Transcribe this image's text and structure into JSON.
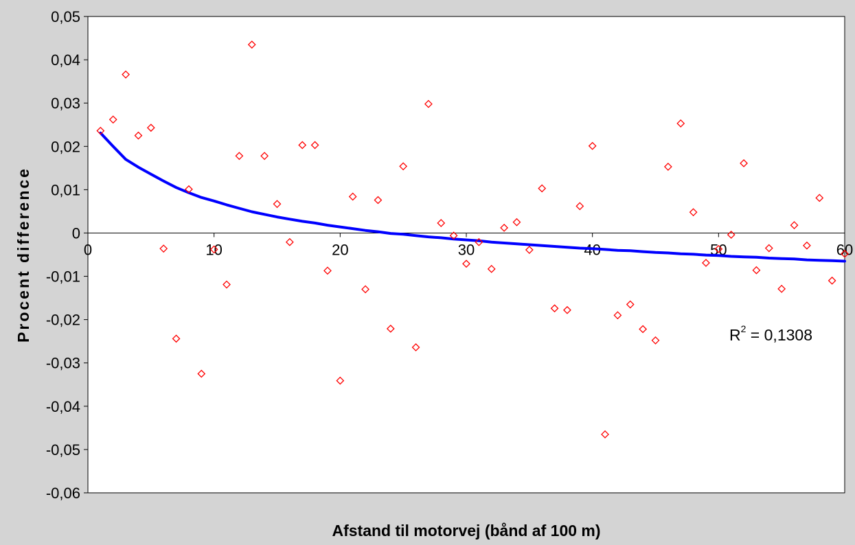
{
  "chart_data": {
    "type": "scatter",
    "title": "",
    "xlabel": "Afstand til motorvej (bånd af 100 m)",
    "ylabel": "Procent difference",
    "xlim": [
      0,
      60
    ],
    "ylim": [
      -0.06,
      0.05
    ],
    "x_ticks": [
      0,
      10,
      20,
      30,
      40,
      50,
      60
    ],
    "x_tick_labels": [
      "0",
      "10",
      "20",
      "30",
      "40",
      "50",
      "60"
    ],
    "y_ticks": [
      0.05,
      0.04,
      0.03,
      0.02,
      0.01,
      0,
      -0.01,
      -0.02,
      -0.03,
      -0.04,
      -0.05,
      -0.06
    ],
    "y_tick_labels": [
      "0,05",
      "0,04",
      "0,03",
      "0,02",
      "0,01",
      "0",
      "-0,01",
      "-0,02",
      "-0,03",
      "-0,04",
      "-0,05",
      "-0,06"
    ],
    "grid": false,
    "legend": "none",
    "series": [
      {
        "marker": "diamond-open",
        "color": "#ff0000",
        "x": [
          1,
          2,
          3,
          4,
          5,
          6,
          7,
          8,
          9,
          10,
          11,
          12,
          13,
          14,
          15,
          16,
          17,
          18,
          19,
          20,
          21,
          22,
          23,
          24,
          25,
          26,
          27,
          28,
          29,
          30,
          31,
          32,
          33,
          34,
          35,
          36,
          37,
          38,
          39,
          40,
          41,
          42,
          43,
          44,
          45,
          46,
          47,
          48,
          49,
          50,
          51,
          52,
          53,
          54,
          55,
          56,
          57,
          58,
          59,
          60
        ],
        "y": [
          0.0236,
          0.0262,
          0.0366,
          0.0225,
          0.0243,
          -0.0036,
          -0.0244,
          0.0101,
          -0.0325,
          -0.0038,
          -0.0119,
          0.0178,
          0.0435,
          0.0178,
          0.0067,
          -0.0021,
          0.0203,
          0.0203,
          -0.0087,
          -0.0341,
          0.0084,
          -0.013,
          0.0076,
          -0.0221,
          0.0154,
          -0.0264,
          0.0298,
          0.0023,
          -0.0006,
          -0.0071,
          -0.0021,
          -0.0083,
          0.0012,
          0.0025,
          -0.0039,
          0.0103,
          -0.0174,
          -0.0178,
          0.0062,
          0.0201,
          -0.0465,
          -0.019,
          -0.0165,
          -0.0222,
          -0.0248,
          0.0153,
          0.0253,
          0.0048,
          -0.0069,
          -0.0037,
          -0.0004,
          0.0161,
          -0.0086,
          -0.0035,
          -0.0129,
          0.0018,
          -0.0029,
          0.0081,
          -0.011,
          -0.0048
        ]
      },
      {
        "type": "line",
        "color": "#0000ff",
        "x": [
          1,
          2,
          3,
          4,
          5,
          6,
          7,
          8,
          9,
          10,
          11,
          12,
          13,
          14,
          15,
          16,
          17,
          18,
          19,
          20,
          21,
          22,
          23,
          24,
          25,
          26,
          27,
          28,
          29,
          30,
          31,
          32,
          33,
          34,
          35,
          36,
          37,
          38,
          39,
          40,
          41,
          42,
          43,
          44,
          45,
          46,
          47,
          48,
          49,
          50,
          51,
          52,
          53,
          54,
          55,
          56,
          57,
          58,
          59,
          60
        ],
        "y": [
          0.0231,
          0.02,
          0.017,
          0.0152,
          0.0136,
          0.012,
          0.0105,
          0.0093,
          0.0082,
          0.0074,
          0.0065,
          0.0057,
          0.0049,
          0.0043,
          0.0037,
          0.0032,
          0.0027,
          0.0023,
          0.0018,
          0.0014,
          0.001,
          0.0006,
          0.0003,
          -0.0001,
          -0.0003,
          -0.0006,
          -0.0009,
          -0.0011,
          -0.0014,
          -0.0016,
          -0.0018,
          -0.0021,
          -0.0023,
          -0.0025,
          -0.0027,
          -0.0029,
          -0.0031,
          -0.0033,
          -0.0035,
          -0.0036,
          -0.0038,
          -0.004,
          -0.0041,
          -0.0043,
          -0.0045,
          -0.0046,
          -0.0048,
          -0.0049,
          -0.0051,
          -0.0052,
          -0.0054,
          -0.0055,
          -0.0056,
          -0.0058,
          -0.0059,
          -0.006,
          -0.0062,
          -0.0063,
          -0.0064,
          -0.0065
        ]
      }
    ],
    "annotations": [
      {
        "text_base": "R",
        "text_sup": "2",
        "text_rest": " = 0,1308"
      }
    ]
  }
}
